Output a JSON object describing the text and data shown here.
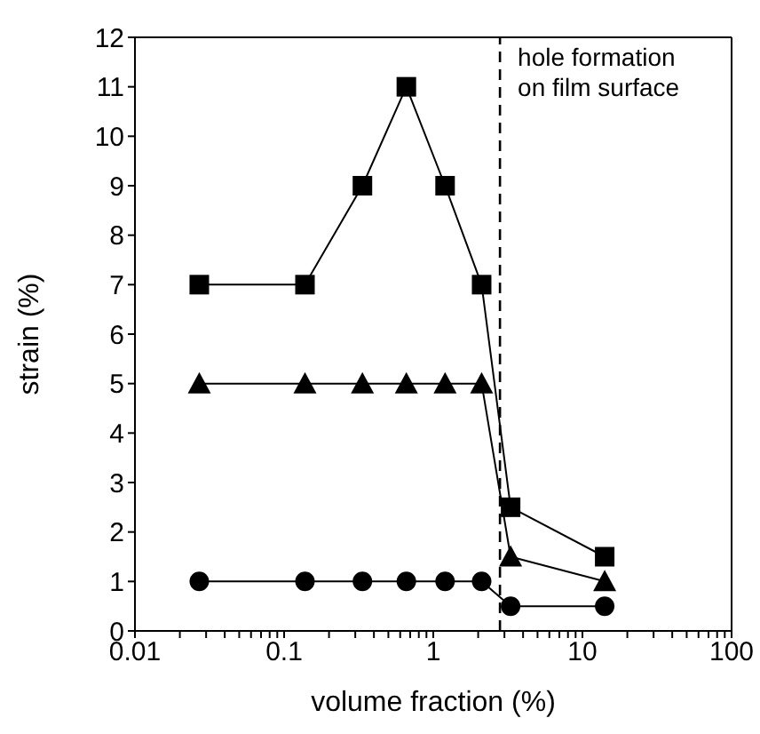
{
  "chart_data": {
    "type": "line",
    "xlabel": "volume fraction (%)",
    "ylabel": "strain (%)",
    "log": "x",
    "grid": false,
    "legend": false,
    "line_style": "solid",
    "xlim": [
      0.01,
      100
    ],
    "xticks": [
      0.01,
      {
        "value": 0.02,
        "label": null
      },
      {
        "value": 0.03,
        "label": null
      },
      {
        "value": 0.04,
        "label": null
      },
      {
        "value": 0.05,
        "label": null
      },
      {
        "value": 0.06,
        "label": null
      },
      {
        "value": 0.07,
        "label": null
      },
      {
        "value": 0.08,
        "label": null
      },
      {
        "value": 0.09,
        "label": null
      },
      0.1,
      {
        "value": 0.2,
        "label": null
      },
      {
        "value": 0.3,
        "label": null
      },
      {
        "value": 0.4,
        "label": null
      },
      {
        "value": 0.5,
        "label": null
      },
      {
        "value": 0.6,
        "label": null
      },
      {
        "value": 0.7,
        "label": null
      },
      {
        "value": 0.8,
        "label": null
      },
      {
        "value": 0.9,
        "label": null
      },
      1,
      {
        "value": 2,
        "label": null
      },
      {
        "value": 3,
        "label": null
      },
      {
        "value": 4,
        "label": null
      },
      {
        "value": 5,
        "label": null
      },
      {
        "value": 6,
        "label": null
      },
      {
        "value": 7,
        "label": null
      },
      {
        "value": 8,
        "label": null
      },
      {
        "value": 9,
        "label": null
      },
      10,
      {
        "value": 20,
        "label": null
      },
      {
        "value": 30,
        "label": null
      },
      {
        "value": 40,
        "label": null
      },
      {
        "value": 50,
        "label": null
      },
      {
        "value": 60,
        "label": null
      },
      {
        "value": 70,
        "label": null
      },
      {
        "value": 80,
        "label": null
      },
      {
        "value": 90,
        "label": null
      },
      100
    ],
    "ylim": [
      0,
      12
    ],
    "yticks": [
      0,
      1,
      2,
      3,
      4,
      5,
      6,
      7,
      8,
      9,
      10,
      11,
      12
    ],
    "x": [
      0.027,
      0.138,
      0.335,
      0.66,
      1.2,
      2.11,
      3.3,
      14.1
    ],
    "series": [
      {
        "color": "#000000",
        "marker": "square",
        "values": [
          7,
          7,
          9,
          11,
          9,
          7,
          2.5,
          1.5
        ]
      },
      {
        "color": "#000000",
        "marker": "triangle",
        "values": [
          5,
          5,
          5,
          5,
          5,
          5,
          1.5,
          1
        ]
      },
      {
        "color": "#000000",
        "marker": "circle",
        "values": [
          1,
          1,
          1,
          1,
          1,
          1,
          0.5,
          0.5
        ]
      }
    ],
    "ref_lines": [
      {
        "axis": "x",
        "value": 2.8,
        "label": "hole formation\non film surface",
        "color": "#000000",
        "line_style": "dashed"
      }
    ]
  }
}
